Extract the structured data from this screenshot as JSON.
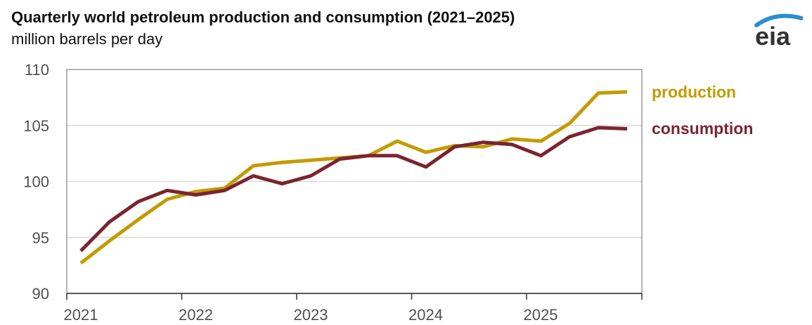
{
  "header": {
    "title": "Quarterly world petroleum production and consumption (2021–2025)",
    "subtitle": "million barrels per day"
  },
  "logo": {
    "text": "eia",
    "icon": "eia-logo"
  },
  "colors": {
    "production": "#c49a00",
    "consumption": "#7b2430",
    "axis": "#808080",
    "grid": "#d9d9d9"
  },
  "chart_data": {
    "type": "line",
    "title": "Quarterly world petroleum production and consumption (2021–2025)",
    "ylabel": "million barrels per day",
    "xlabel": "",
    "ylim": [
      90,
      110
    ],
    "yticks": [
      "90",
      "95",
      "100",
      "105",
      "110"
    ],
    "xticks": [
      "2021",
      "2022",
      "2023",
      "2024",
      "2025"
    ],
    "grid": true,
    "legend": "right",
    "x": [
      "2021 Q1",
      "2021 Q2",
      "2021 Q3",
      "2021 Q4",
      "2022 Q1",
      "2022 Q2",
      "2022 Q3",
      "2022 Q4",
      "2023 Q1",
      "2023 Q2",
      "2023 Q3",
      "2023 Q4",
      "2024 Q1",
      "2024 Q2",
      "2024 Q3",
      "2024 Q4",
      "2025 Q1",
      "2025 Q2",
      "2025 Q3",
      "2025 Q4"
    ],
    "series": [
      {
        "name": "production",
        "values": [
          92.7,
          94.7,
          96.6,
          98.4,
          99.1,
          99.4,
          101.4,
          101.7,
          101.9,
          102.1,
          102.3,
          103.6,
          102.6,
          103.2,
          103.1,
          103.8,
          103.6,
          105.2,
          107.9,
          108.0
        ]
      },
      {
        "name": "consumption",
        "values": [
          93.8,
          96.4,
          98.2,
          99.2,
          98.8,
          99.2,
          100.5,
          99.8,
          100.5,
          102.0,
          102.3,
          102.3,
          101.3,
          103.1,
          103.5,
          103.3,
          102.3,
          104.0,
          104.8,
          104.7
        ]
      }
    ]
  }
}
